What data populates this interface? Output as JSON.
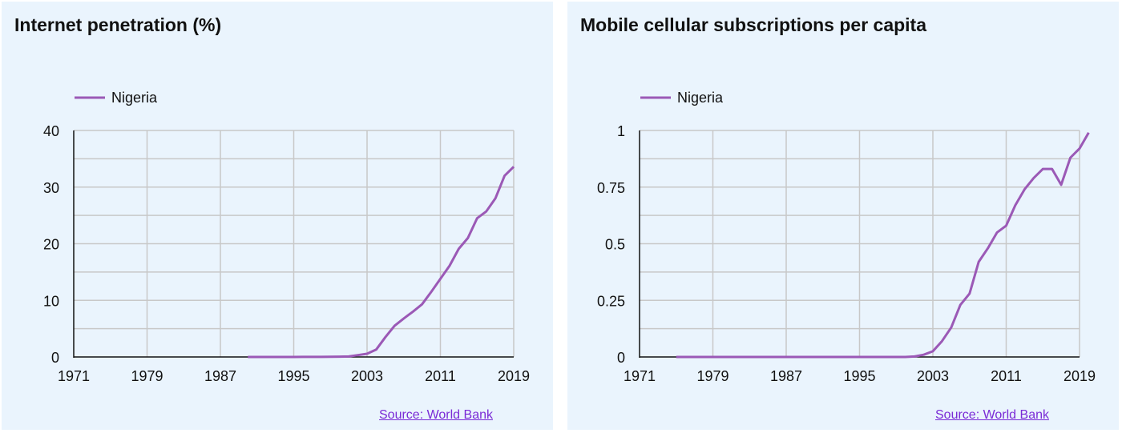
{
  "colors": {
    "background": "#eaf4fd",
    "series": "#9b59b6",
    "grid": "#c8c8c8",
    "axis": "#111111",
    "link": "#7a2bd6"
  },
  "chart_data": [
    {
      "type": "line",
      "title": "Internet penetration (%)",
      "source_label": "Source: World Bank",
      "legend": [
        "Nigeria"
      ],
      "xlim": [
        1971,
        2019
      ],
      "ylim": [
        0,
        40
      ],
      "x_ticks": [
        1971,
        1979,
        1987,
        1995,
        2003,
        2011,
        2019
      ],
      "y_ticks": [
        "0",
        "10",
        "20",
        "30",
        "40"
      ],
      "y_tick_values": [
        0,
        10,
        20,
        30,
        40
      ],
      "grid": true,
      "series": [
        {
          "name": "Nigeria",
          "x": [
            1990,
            1991,
            1992,
            1993,
            1994,
            1995,
            1996,
            1997,
            1998,
            1999,
            2000,
            2001,
            2002,
            2003,
            2004,
            2005,
            2006,
            2007,
            2008,
            2009,
            2010,
            2011,
            2012,
            2013,
            2014,
            2015,
            2016,
            2017,
            2018,
            2019
          ],
          "y": [
            0,
            0,
            0,
            0,
            0,
            0,
            0.01,
            0.01,
            0.02,
            0.03,
            0.06,
            0.09,
            0.32,
            0.56,
            1.3,
            3.5,
            5.5,
            6.8,
            8.0,
            9.3,
            11.5,
            13.8,
            16.1,
            19.1,
            21.0,
            24.5,
            25.7,
            28.0,
            32.0,
            33.6
          ]
        }
      ]
    },
    {
      "type": "line",
      "title": "Mobile cellular subscriptions per capita",
      "source_label": "Source: World Bank",
      "legend": [
        "Nigeria"
      ],
      "xlim": [
        1971,
        2019
      ],
      "ylim": [
        0,
        1
      ],
      "x_ticks": [
        1971,
        1979,
        1987,
        1995,
        2003,
        2011,
        2019
      ],
      "y_ticks": [
        "0",
        "0.25",
        "0.5",
        "0.75",
        "1"
      ],
      "y_tick_values": [
        0,
        0.25,
        0.5,
        0.75,
        1
      ],
      "grid": true,
      "series": [
        {
          "name": "Nigeria",
          "x": [
            1975,
            1980,
            1985,
            1990,
            1995,
            1996,
            1997,
            1998,
            1999,
            2000,
            2001,
            2002,
            2003,
            2004,
            2005,
            2006,
            2007,
            2008,
            2009,
            2010,
            2011,
            2012,
            2013,
            2014,
            2015,
            2016,
            2017,
            2018,
            2019,
            2020
          ],
          "y": [
            0,
            0,
            0,
            0,
            0,
            0,
            0,
            0,
            0,
            0,
            0.002,
            0.01,
            0.025,
            0.07,
            0.13,
            0.23,
            0.28,
            0.42,
            0.48,
            0.55,
            0.58,
            0.67,
            0.74,
            0.79,
            0.83,
            0.83,
            0.76,
            0.88,
            0.92,
            0.99
          ]
        }
      ]
    }
  ]
}
